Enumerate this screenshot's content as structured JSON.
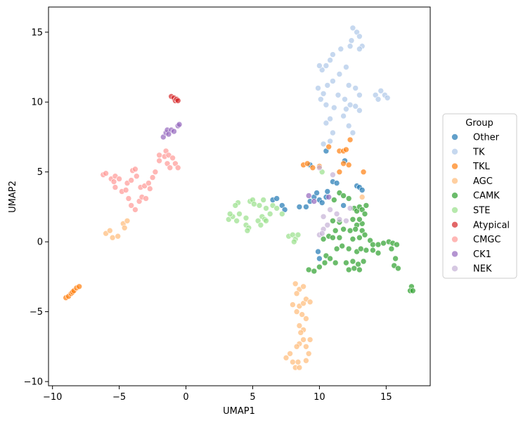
{
  "chart_data": {
    "type": "scatter",
    "xlabel": "UMAP1",
    "ylabel": "UMAP2",
    "xlim": [
      -10.3,
      18.3
    ],
    "ylim": [
      -10.3,
      16.8
    ],
    "xticks": [
      -10,
      -5,
      0,
      5,
      10,
      15
    ],
    "yticks": [
      -10,
      -5,
      0,
      5,
      10,
      15
    ],
    "legend_title": "Group",
    "legend_position": "right",
    "series": [
      {
        "name": "Other",
        "color": "#1f77b4",
        "points": [
          [
            6.5,
            3.0
          ],
          [
            6.8,
            3.1
          ],
          [
            7.2,
            2.6
          ],
          [
            7.4,
            2.3
          ],
          [
            8.5,
            2.5
          ],
          [
            9.0,
            2.5
          ],
          [
            9.3,
            2.9
          ],
          [
            9.6,
            3.2
          ],
          [
            9.8,
            3.5
          ],
          [
            10.0,
            3.0
          ],
          [
            10.2,
            2.8
          ],
          [
            10.5,
            3.2
          ],
          [
            10.6,
            3.6
          ],
          [
            11.0,
            4.3
          ],
          [
            11.3,
            4.2
          ],
          [
            11.8,
            2.6
          ],
          [
            12.8,
            4.0
          ],
          [
            13.0,
            3.9
          ],
          [
            13.2,
            3.7
          ],
          [
            10.5,
            6.5
          ],
          [
            11.9,
            5.8
          ],
          [
            9.9,
            -0.7
          ],
          [
            10.0,
            -1.2
          ],
          [
            9.3,
            5.5
          ]
        ]
      },
      {
        "name": "TK",
        "color": "#aec7e8",
        "points": [
          [
            12.5,
            15.3
          ],
          [
            12.8,
            15.0
          ],
          [
            13.0,
            14.7
          ],
          [
            12.4,
            14.4
          ],
          [
            12.3,
            14.0
          ],
          [
            13.2,
            14.0
          ],
          [
            13.0,
            13.8
          ],
          [
            11.6,
            13.8
          ],
          [
            11.0,
            13.4
          ],
          [
            10.8,
            13.0
          ],
          [
            10.5,
            12.6
          ],
          [
            10.2,
            12.3
          ],
          [
            10.0,
            12.6
          ],
          [
            12.0,
            12.5
          ],
          [
            11.5,
            12.0
          ],
          [
            11.0,
            11.5
          ],
          [
            10.6,
            11.2
          ],
          [
            12.2,
            11.2
          ],
          [
            12.7,
            11.0
          ],
          [
            13.0,
            10.5
          ],
          [
            11.9,
            10.2
          ],
          [
            11.4,
            10.5
          ],
          [
            10.3,
            10.6
          ],
          [
            9.9,
            11.0
          ],
          [
            10.1,
            10.2
          ],
          [
            10.5,
            9.8
          ],
          [
            11.1,
            9.6
          ],
          [
            12.0,
            9.5
          ],
          [
            12.3,
            9.8
          ],
          [
            12.7,
            9.7
          ],
          [
            13.0,
            9.4
          ],
          [
            11.8,
            9.0
          ],
          [
            10.5,
            8.5
          ],
          [
            10.8,
            8.8
          ],
          [
            11.0,
            7.8
          ],
          [
            12.2,
            8.3
          ],
          [
            12.5,
            7.8
          ],
          [
            10.3,
            7.0
          ],
          [
            10.8,
            7.2
          ],
          [
            14.2,
            10.5
          ],
          [
            14.6,
            10.8
          ],
          [
            14.9,
            10.5
          ],
          [
            15.1,
            10.3
          ],
          [
            14.4,
            10.2
          ]
        ]
      },
      {
        "name": "TKL",
        "color": "#ff7f0e",
        "points": [
          [
            -9.0,
            -4.0
          ],
          [
            -8.8,
            -3.9
          ],
          [
            -8.6,
            -3.7
          ],
          [
            -8.5,
            -3.6
          ],
          [
            -8.4,
            -3.5
          ],
          [
            -8.2,
            -3.3
          ],
          [
            -8.0,
            -3.2
          ],
          [
            8.8,
            5.5
          ],
          [
            9.1,
            5.6
          ],
          [
            9.5,
            5.3
          ],
          [
            10.0,
            5.4
          ],
          [
            10.7,
            6.8
          ],
          [
            11.5,
            6.5
          ],
          [
            11.8,
            6.5
          ],
          [
            12.0,
            6.6
          ],
          [
            12.3,
            7.3
          ],
          [
            11.8,
            5.6
          ],
          [
            12.2,
            5.5
          ],
          [
            13.3,
            5.0
          ],
          [
            11.5,
            5.0
          ]
        ]
      },
      {
        "name": "AGC",
        "color": "#ffbb78",
        "points": [
          [
            -6.0,
            0.6
          ],
          [
            -5.7,
            0.8
          ],
          [
            -5.5,
            0.3
          ],
          [
            -5.1,
            0.4
          ],
          [
            -4.7,
            1.3
          ],
          [
            -4.4,
            1.5
          ],
          [
            -4.6,
            1.0
          ],
          [
            8.2,
            -3.0
          ],
          [
            8.5,
            -3.4
          ],
          [
            8.8,
            -3.2
          ],
          [
            8.3,
            -3.7
          ],
          [
            8.0,
            -4.5
          ],
          [
            8.5,
            -4.6
          ],
          [
            8.8,
            -4.4
          ],
          [
            9.0,
            -4.1
          ],
          [
            9.3,
            -4.3
          ],
          [
            8.3,
            -5.0
          ],
          [
            8.7,
            -5.2
          ],
          [
            9.0,
            -5.5
          ],
          [
            8.5,
            -6.0
          ],
          [
            8.8,
            -6.3
          ],
          [
            8.6,
            -6.5
          ],
          [
            8.5,
            -7.3
          ],
          [
            8.8,
            -7.0
          ],
          [
            8.3,
            -7.5
          ],
          [
            7.5,
            -8.3
          ],
          [
            7.8,
            -8.0
          ],
          [
            8.0,
            -8.6
          ],
          [
            8.4,
            -8.6
          ],
          [
            8.2,
            -9.0
          ],
          [
            8.5,
            -9.0
          ],
          [
            9.0,
            -8.5
          ],
          [
            9.2,
            -8.0
          ],
          [
            9.0,
            -7.5
          ],
          [
            9.3,
            -7.0
          ],
          [
            13.2,
            3.2
          ]
        ]
      },
      {
        "name": "CAMK",
        "color": "#2ca02c",
        "points": [
          [
            11.1,
            3.0
          ],
          [
            11.5,
            3.5
          ],
          [
            11.8,
            3.3
          ],
          [
            12.2,
            3.1
          ],
          [
            12.6,
            2.4
          ],
          [
            12.8,
            2.2
          ],
          [
            13.0,
            2.5
          ],
          [
            13.2,
            2.3
          ],
          [
            13.4,
            2.0
          ],
          [
            13.5,
            2.6
          ],
          [
            11.0,
            1.5
          ],
          [
            11.5,
            1.4
          ],
          [
            12.5,
            1.6
          ],
          [
            12.8,
            1.2
          ],
          [
            13.2,
            1.3
          ],
          [
            13.0,
            1.6
          ],
          [
            11.2,
            0.8
          ],
          [
            11.8,
            0.9
          ],
          [
            12.3,
            0.8
          ],
          [
            12.7,
            0.9
          ],
          [
            13.2,
            0.8
          ],
          [
            13.4,
            0.5
          ],
          [
            10.3,
            0.2
          ],
          [
            10.7,
            0.4
          ],
          [
            11.0,
            0.3
          ],
          [
            11.5,
            0.3
          ],
          [
            12.5,
            0.2
          ],
          [
            13.0,
            0.3
          ],
          [
            13.8,
            0.1
          ],
          [
            11.3,
            -0.5
          ],
          [
            11.7,
            -0.3
          ],
          [
            12.2,
            -0.5
          ],
          [
            12.8,
            -0.7
          ],
          [
            13.1,
            -0.5
          ],
          [
            13.5,
            -0.6
          ],
          [
            14.0,
            -0.6
          ],
          [
            14.4,
            -0.8
          ],
          [
            10.5,
            -1.0
          ],
          [
            10.8,
            -1.2
          ],
          [
            11.2,
            -1.5
          ],
          [
            10.4,
            -1.5
          ],
          [
            10.0,
            -1.8
          ],
          [
            12.0,
            -1.5
          ],
          [
            12.5,
            -1.4
          ],
          [
            12.9,
            -1.6
          ],
          [
            13.3,
            -1.4
          ],
          [
            12.2,
            -2.0
          ],
          [
            12.6,
            -1.9
          ],
          [
            13.0,
            -2.0
          ],
          [
            9.2,
            -2.0
          ],
          [
            9.6,
            -2.1
          ],
          [
            14.0,
            -0.2
          ],
          [
            14.4,
            -0.2
          ],
          [
            14.8,
            -0.1
          ],
          [
            15.2,
            0.0
          ],
          [
            15.5,
            -0.1
          ],
          [
            15.8,
            -0.2
          ],
          [
            15.4,
            -0.5
          ],
          [
            15.7,
            -1.2
          ],
          [
            15.6,
            -1.7
          ],
          [
            15.9,
            -1.9
          ],
          [
            16.9,
            -3.2
          ],
          [
            16.8,
            -3.5
          ],
          [
            17.0,
            -3.5
          ]
        ]
      },
      {
        "name": "STE",
        "color": "#98df8a",
        "points": [
          [
            3.2,
            1.6
          ],
          [
            3.5,
            1.8
          ],
          [
            3.3,
            2.0
          ],
          [
            3.8,
            1.5
          ],
          [
            4.0,
            2.0
          ],
          [
            3.9,
            2.8
          ],
          [
            3.7,
            2.6
          ],
          [
            4.5,
            1.2
          ],
          [
            4.7,
            1.0
          ],
          [
            4.6,
            0.8
          ],
          [
            4.5,
            1.7
          ],
          [
            4.8,
            2.9
          ],
          [
            5.0,
            3.0
          ],
          [
            5.1,
            2.7
          ],
          [
            5.5,
            2.6
          ],
          [
            5.4,
            1.5
          ],
          [
            5.7,
            1.8
          ],
          [
            5.9,
            1.6
          ],
          [
            5.6,
            1.2
          ],
          [
            6.0,
            1.5
          ],
          [
            6.3,
            2.0
          ],
          [
            6.0,
            2.4
          ],
          [
            6.5,
            2.6
          ],
          [
            5.8,
            3.0
          ],
          [
            6.8,
            2.4
          ],
          [
            7.2,
            2.0
          ],
          [
            7.7,
            0.4
          ],
          [
            8.0,
            0.5
          ],
          [
            8.2,
            0.2
          ],
          [
            8.4,
            0.5
          ],
          [
            8.1,
            0.0
          ],
          [
            10.2,
            5.0
          ]
        ]
      },
      {
        "name": "Atypical",
        "color": "#d62728",
        "points": [
          [
            -1.1,
            10.4
          ],
          [
            -0.9,
            10.3
          ],
          [
            -0.8,
            10.1
          ],
          [
            -0.7,
            10.2
          ],
          [
            -0.6,
            10.1
          ]
        ]
      },
      {
        "name": "CMGC",
        "color": "#ff9896",
        "points": [
          [
            -6.2,
            4.8
          ],
          [
            -6.0,
            4.9
          ],
          [
            -5.6,
            4.5
          ],
          [
            -5.4,
            4.3
          ],
          [
            -5.3,
            4.7
          ],
          [
            -5.0,
            4.5
          ],
          [
            -5.3,
            3.9
          ],
          [
            -4.8,
            3.6
          ],
          [
            -4.5,
            3.7
          ],
          [
            -4.4,
            4.2
          ],
          [
            -4.1,
            4.4
          ],
          [
            -4.0,
            5.1
          ],
          [
            -3.8,
            5.2
          ],
          [
            -3.7,
            4.7
          ],
          [
            -4.3,
            3.1
          ],
          [
            -4.1,
            2.6
          ],
          [
            -3.8,
            2.3
          ],
          [
            -3.5,
            2.9
          ],
          [
            -3.3,
            3.2
          ],
          [
            -3.0,
            3.1
          ],
          [
            -3.4,
            3.9
          ],
          [
            -3.1,
            4.0
          ],
          [
            -2.7,
            3.8
          ],
          [
            -2.8,
            4.2
          ],
          [
            -2.5,
            4.6
          ],
          [
            -2.3,
            5.0
          ],
          [
            -2.0,
            5.8
          ],
          [
            -2.0,
            6.2
          ],
          [
            -1.6,
            6.1
          ],
          [
            -1.5,
            6.5
          ],
          [
            -1.3,
            6.2
          ],
          [
            -1.4,
            5.6
          ],
          [
            -1.0,
            6.0
          ],
          [
            -0.8,
            5.6
          ],
          [
            -0.6,
            5.3
          ],
          [
            -1.2,
            5.3
          ]
        ]
      },
      {
        "name": "CK1",
        "color": "#9467bd",
        "points": [
          [
            -1.7,
            7.5
          ],
          [
            -1.5,
            7.8
          ],
          [
            -1.4,
            8.0
          ],
          [
            -1.1,
            8.0
          ],
          [
            -0.9,
            7.9
          ],
          [
            -0.6,
            8.3
          ],
          [
            -0.5,
            8.4
          ],
          [
            -1.3,
            7.7
          ],
          [
            9.2,
            3.3
          ],
          [
            9.6,
            2.9
          ],
          [
            10.7,
            3.2
          ]
        ]
      },
      {
        "name": "NEK",
        "color": "#c5b0d5",
        "points": [
          [
            10.3,
            1.8
          ],
          [
            10.8,
            2.3
          ],
          [
            11.3,
            2.0
          ],
          [
            12.0,
            1.5
          ],
          [
            11.5,
            1.6
          ],
          [
            12.3,
            2.4
          ],
          [
            10.0,
            0.5
          ],
          [
            10.3,
            0.9
          ],
          [
            10.6,
            1.2
          ],
          [
            10.2,
            0.6
          ],
          [
            10.0,
            5.3
          ],
          [
            11.0,
            4.8
          ]
        ]
      }
    ]
  }
}
